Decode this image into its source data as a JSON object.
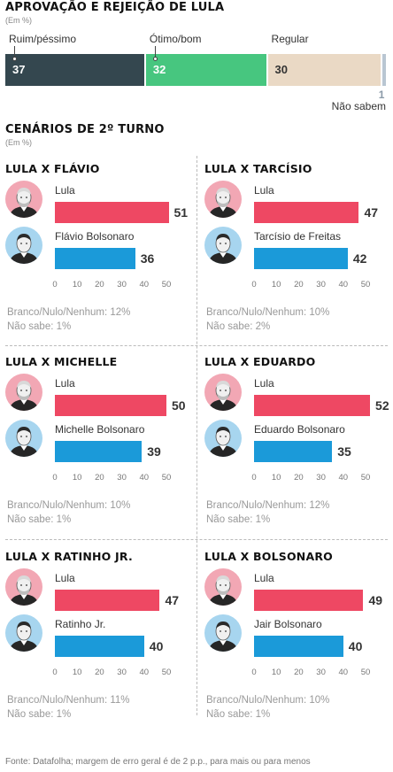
{
  "chart_data": [
    {
      "type": "bar",
      "title": "APROVAÇÃO E REJEIÇÃO DE LULA",
      "subtitle": "(Em %)",
      "categories": [
        "Ruim/péssimo",
        "Ótimo/bom",
        "Regular",
        "Não sabem"
      ],
      "values": [
        37,
        32,
        30,
        1
      ],
      "colors": [
        "#34474f",
        "#47c67f",
        "#ead9c5",
        "#b9c6d2"
      ]
    },
    {
      "type": "bar",
      "section_title": "CENÁRIOS DE 2º TURNO",
      "section_subtitle": "(Em %)",
      "scenarios": [
        {
          "title": "LULA X FLÁVIO",
          "categories": [
            "Lula",
            "Flávio Bolsonaro"
          ],
          "values": [
            51,
            36
          ],
          "notes": [
            "Branco/Nulo/Nenhum: 12%",
            "Não sabe: 1%"
          ]
        },
        {
          "title": "LULA X TARCÍSIO",
          "categories": [
            "Lula",
            "Tarcísio de Freitas"
          ],
          "values": [
            47,
            42
          ],
          "notes": [
            "Branco/Nulo/Nenhum:  10%",
            "Não sabe: 2%"
          ]
        },
        {
          "title": "LULA X MICHELLE",
          "categories": [
            "Lula",
            "Michelle Bolsonaro"
          ],
          "values": [
            50,
            39
          ],
          "notes": [
            "Branco/Nulo/Nenhum: 10%",
            "Não sabe: 1%"
          ]
        },
        {
          "title": "LULA X EDUARDO",
          "categories": [
            "Lula",
            "Eduardo Bolsonaro"
          ],
          "values": [
            52,
            35
          ],
          "notes": [
            "Branco/Nulo/Nenhum: 12%",
            "Não sabe: 1%"
          ]
        },
        {
          "title": "LULA X RATINHO JR.",
          "categories": [
            "Lula",
            "Ratinho Jr."
          ],
          "values": [
            47,
            40
          ],
          "notes": [
            "Branco/Nulo/Nenhum: 11%",
            "Não sabe: 1%"
          ]
        },
        {
          "title": "LULA X BOLSONARO",
          "categories": [
            "Lula",
            "Jair Bolsonaro"
          ],
          "values": [
            49,
            40
          ],
          "notes": [
            "Branco/Nulo/Nenhum: 10%",
            "Não sabe: 1%"
          ]
        }
      ],
      "xticks": [
        0,
        10,
        20,
        30,
        40,
        50
      ],
      "xlim": [
        0,
        50
      ],
      "colors": {
        "lula": "#ee4863",
        "opponent": "#1b9ad9"
      }
    }
  ],
  "avatars": {
    "lula": "lula-portrait-icon",
    "opponent": "candidate-portrait-icon",
    "lula_bg": "#f2a7b4",
    "opponent_bg": "#a7d5ef"
  },
  "source": "Fonte: Datafolha; margem de erro geral é de 2 p.p., para mais ou para menos"
}
